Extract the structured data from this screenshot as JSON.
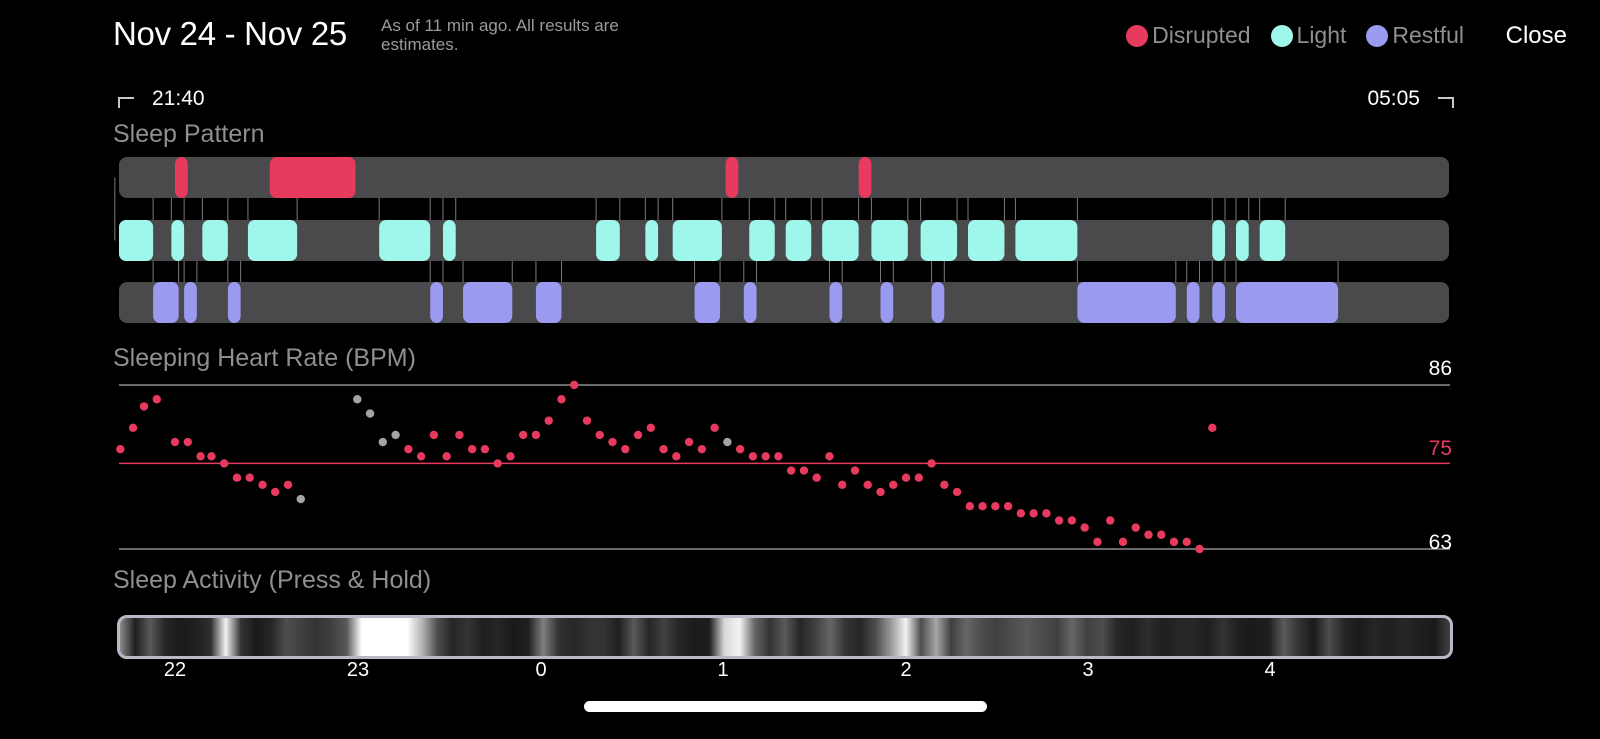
{
  "header": {
    "title": "Nov 24 - Nov 25",
    "subtitle": "As of 11 min ago. All results are estimates.",
    "close_label": "Close"
  },
  "legend": [
    {
      "label": "Disrupted",
      "color": "#e83a5f"
    },
    {
      "label": "Light",
      "color": "#9ef7ea"
    },
    {
      "label": "Restful",
      "color": "#9a9bf0"
    }
  ],
  "timeline": {
    "start": "21:40",
    "end": "05:05"
  },
  "sleep_pattern": {
    "title": "Sleep Pattern",
    "track_color": "#4a4a4c",
    "segments": {
      "disrupted": [
        [
          22.0,
          22.07
        ],
        [
          22.52,
          22.99
        ],
        [
          1.02,
          1.09
        ],
        [
          1.75,
          1.82
        ]
      ],
      "light": [
        [
          21.67,
          21.88
        ],
        [
          21.98,
          22.05
        ],
        [
          22.15,
          22.29
        ],
        [
          22.4,
          22.67
        ],
        [
          23.12,
          23.4
        ],
        [
          23.47,
          23.54
        ],
        [
          0.31,
          0.44
        ],
        [
          0.58,
          0.65
        ],
        [
          0.73,
          1.0
        ],
        [
          1.15,
          1.29
        ],
        [
          1.35,
          1.49
        ],
        [
          1.55,
          1.75
        ],
        [
          1.82,
          2.02
        ],
        [
          2.09,
          2.29
        ],
        [
          2.35,
          2.55
        ],
        [
          2.61,
          2.95
        ],
        [
          3.69,
          3.76
        ],
        [
          3.82,
          3.89
        ],
        [
          3.95,
          4.09
        ]
      ],
      "restful": [
        [
          21.88,
          22.02
        ],
        [
          22.05,
          22.12
        ],
        [
          22.29,
          22.36
        ],
        [
          23.4,
          23.47
        ],
        [
          23.58,
          23.85
        ],
        [
          23.98,
          24.12
        ],
        [
          0.85,
          0.99
        ],
        [
          1.12,
          1.19
        ],
        [
          1.59,
          1.66
        ],
        [
          1.87,
          1.94
        ],
        [
          2.15,
          2.22
        ],
        [
          2.95,
          3.49
        ],
        [
          3.55,
          3.62
        ],
        [
          3.69,
          3.76
        ],
        [
          3.82,
          4.38
        ]
      ]
    }
  },
  "heart_rate": {
    "title": "Sleeping Heart Rate (BPM)",
    "max_label": "86",
    "avg_label": "75",
    "min_label": "63",
    "max": 86,
    "avg": 75,
    "min": 63,
    "colors": {
      "measured": "#e83a5f",
      "estimated": "#a4a4a8"
    },
    "points": [
      [
        21.7,
        77
      ],
      [
        21.77,
        80
      ],
      [
        21.83,
        83
      ],
      [
        21.9,
        84
      ],
      [
        22.0,
        78
      ],
      [
        22.07,
        78
      ],
      [
        22.14,
        76
      ],
      [
        22.2,
        76
      ],
      [
        22.27,
        75
      ],
      [
        22.34,
        73
      ],
      [
        22.41,
        73
      ],
      [
        22.48,
        72
      ],
      [
        22.55,
        71
      ],
      [
        22.62,
        72
      ],
      [
        22.69,
        70,
        "g"
      ],
      [
        23.0,
        84,
        "g"
      ],
      [
        23.07,
        82,
        "g"
      ],
      [
        23.14,
        78,
        "g"
      ],
      [
        23.21,
        79,
        "g"
      ],
      [
        23.28,
        77
      ],
      [
        23.35,
        76
      ],
      [
        23.42,
        79
      ],
      [
        23.49,
        76
      ],
      [
        23.56,
        79
      ],
      [
        23.63,
        77
      ],
      [
        23.7,
        77
      ],
      [
        23.77,
        75
      ],
      [
        23.84,
        76
      ],
      [
        23.91,
        79
      ],
      [
        23.98,
        79
      ],
      [
        0.05,
        81
      ],
      [
        0.12,
        84
      ],
      [
        0.19,
        86
      ],
      [
        0.26,
        81
      ],
      [
        0.33,
        79
      ],
      [
        0.4,
        78
      ],
      [
        0.47,
        77
      ],
      [
        0.54,
        79
      ],
      [
        0.61,
        80
      ],
      [
        0.68,
        77
      ],
      [
        0.75,
        76
      ],
      [
        0.82,
        78
      ],
      [
        0.89,
        77
      ],
      [
        0.96,
        80
      ],
      [
        1.03,
        78,
        "g"
      ],
      [
        1.1,
        77
      ],
      [
        1.17,
        76
      ],
      [
        1.24,
        76
      ],
      [
        1.31,
        76
      ],
      [
        1.38,
        74
      ],
      [
        1.45,
        74
      ],
      [
        1.52,
        73
      ],
      [
        1.59,
        76
      ],
      [
        1.66,
        72
      ],
      [
        1.73,
        74
      ],
      [
        1.8,
        72
      ],
      [
        1.87,
        71
      ],
      [
        1.94,
        72
      ],
      [
        2.01,
        73
      ],
      [
        2.08,
        73
      ],
      [
        2.15,
        75
      ],
      [
        2.22,
        72
      ],
      [
        2.29,
        71
      ],
      [
        2.36,
        69
      ],
      [
        2.43,
        69
      ],
      [
        2.5,
        69
      ],
      [
        2.57,
        69
      ],
      [
        2.64,
        68
      ],
      [
        2.71,
        68
      ],
      [
        2.78,
        68
      ],
      [
        2.85,
        67
      ],
      [
        2.92,
        67
      ],
      [
        2.99,
        66
      ],
      [
        3.06,
        64
      ],
      [
        3.13,
        67
      ],
      [
        3.2,
        64
      ],
      [
        3.27,
        66
      ],
      [
        3.34,
        65
      ],
      [
        3.41,
        65
      ],
      [
        3.48,
        64
      ],
      [
        3.55,
        64
      ],
      [
        3.62,
        63
      ],
      [
        3.69,
        80
      ]
    ]
  },
  "sleep_activity": {
    "title": "Sleep Activity (Press & Hold)",
    "levels": [
      0.55,
      0.12,
      0.35,
      0.15,
      0.1,
      0.12,
      0.18,
      0.95,
      0.2,
      0.1,
      0.15,
      0.3,
      0.25,
      0.2,
      0.25,
      0.35,
      1.0,
      1.0,
      1.0,
      1.0,
      0.7,
      0.3,
      0.15,
      0.2,
      0.12,
      0.15,
      0.1,
      0.12,
      0.5,
      0.2,
      0.15,
      0.2,
      0.2,
      0.12,
      0.35,
      0.15,
      0.25,
      0.15,
      0.1,
      0.12,
      0.85,
      0.95,
      0.4,
      0.2,
      0.35,
      0.15,
      0.25,
      0.4,
      0.2,
      0.15,
      0.3,
      0.6,
      0.95,
      0.3,
      0.65,
      0.25,
      0.4,
      0.3,
      0.25,
      0.3,
      0.35,
      0.3,
      0.25,
      0.4,
      0.25,
      0.3,
      0.15,
      0.12,
      0.18,
      0.12,
      0.15,
      0.15,
      0.12,
      0.2,
      0.12,
      0.1,
      0.12,
      0.35,
      0.2,
      0.1,
      0.3,
      0.15,
      0.1,
      0.15,
      0.12,
      0.15,
      0.12,
      0.1,
      0.25
    ]
  },
  "x_axis": {
    "ticks": [
      "22",
      "23",
      "0",
      "1",
      "2",
      "3",
      "4"
    ]
  }
}
